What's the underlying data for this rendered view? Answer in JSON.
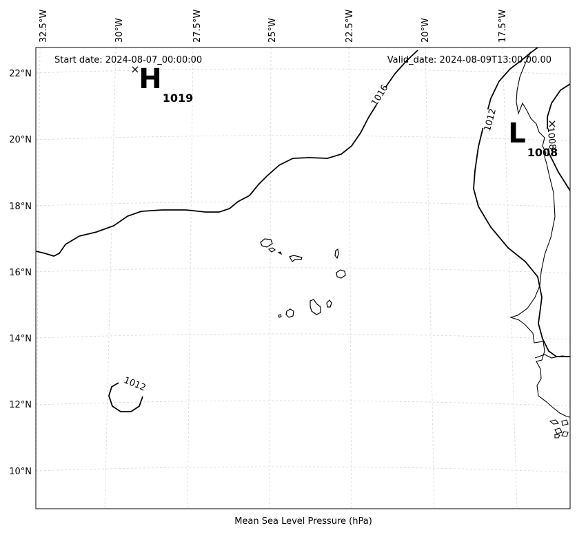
{
  "map": {
    "start_date": "Start date: 2024-08-07_00:00:00",
    "valid_date": "Valid_date: 2024-08-09T13:00:00.00",
    "caption": "Mean Sea Level Pressure (hPa)",
    "lon_labels": [
      "32.5°W",
      "30°W",
      "27.5°W",
      "25°W",
      "22.5°W",
      "20°W",
      "17.5°W"
    ],
    "lat_labels": [
      "22°N",
      "20°N",
      "18°N",
      "16°N",
      "14°N",
      "12°N",
      "10°N"
    ],
    "high_center": {
      "symbol": "H",
      "value": "1019",
      "marker": "×"
    },
    "low_center": {
      "symbol": "L",
      "value": "1008",
      "marker": "×"
    },
    "contour_labels": {
      "c1016": "1016",
      "c1012_right": "1012",
      "c1012_left": "1012",
      "c1008": "1008"
    },
    "colors": {
      "isobar": "#000000",
      "grid": "#d6d6d6",
      "background": "#ffffff"
    }
  }
}
